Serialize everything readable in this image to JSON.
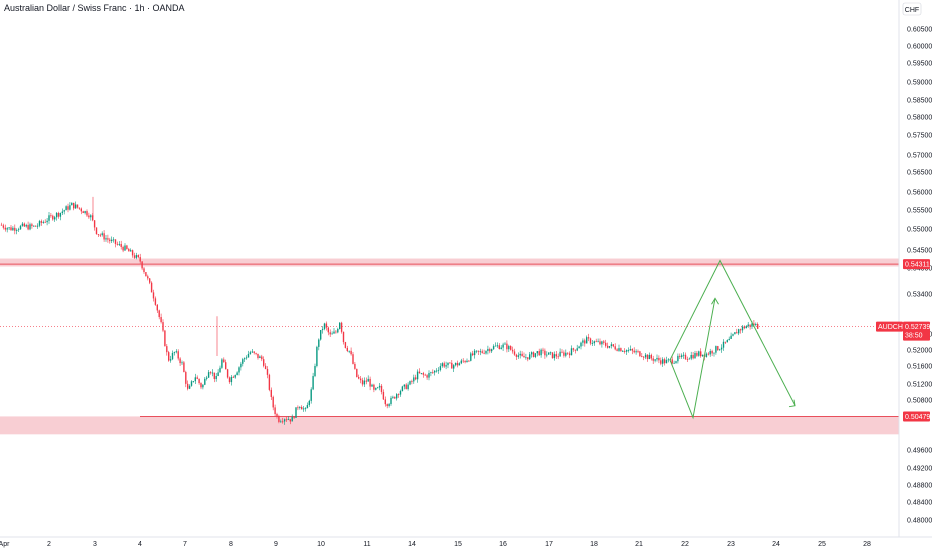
{
  "header": {
    "title": "Australian Dollar / Swiss Franc · 1h · OANDA"
  },
  "price_axis": {
    "currency_button": "CHF",
    "ticks": [
      "0.60500",
      "0.60000",
      "0.59500",
      "0.59000",
      "0.58500",
      "0.58000",
      "0.57500",
      "0.57000",
      "0.56500",
      "0.56000",
      "0.55500",
      "0.55000",
      "0.54500",
      "0.54000",
      "0.53400",
      "0.52400",
      "0.52000",
      "0.51600",
      "0.51200",
      "0.50800",
      "0.49600",
      "0.49200",
      "0.48800",
      "0.48400",
      "0.48000"
    ]
  },
  "time_axis": {
    "ticks": [
      "Apr",
      "2",
      "3",
      "4",
      "7",
      "8",
      "9",
      "10",
      "11",
      "14",
      "15",
      "16",
      "17",
      "18",
      "21",
      "22",
      "23",
      "24",
      "25",
      "28"
    ]
  },
  "price_tags": {
    "resistance": "0.54311",
    "current_symbol": "AUDCHF",
    "current_price": "0.52739",
    "countdown": "38:50",
    "support": "0.50479"
  },
  "colors": {
    "up": "#089981",
    "down": "#f23645",
    "zone_fill": "#f7c6cb",
    "zone_line": "#e8505c",
    "drawing": "#4caf50",
    "current_tag": "#f23645"
  },
  "chart_data": {
    "type": "candlestick",
    "symbol": "AUDCHF",
    "interval": "1h",
    "source": "OANDA",
    "ylim": [
      0.478,
      0.6075
    ],
    "resistance_zone": [
      0.5425,
      0.5445
    ],
    "support_zone": [
      0.5003,
      0.5048
    ],
    "current_price": 0.52739,
    "path": [
      [
        0,
        0.553
      ],
      [
        10,
        0.552
      ],
      [
        22,
        0.5525
      ],
      [
        35,
        0.5525
      ],
      [
        48,
        0.5545
      ],
      [
        60,
        0.556
      ],
      [
        72,
        0.558
      ],
      [
        80,
        0.557
      ],
      [
        90,
        0.5555
      ],
      [
        97,
        0.551
      ],
      [
        110,
        0.549
      ],
      [
        125,
        0.547
      ],
      [
        140,
        0.544
      ],
      [
        148,
        0.539
      ],
      [
        155,
        0.534
      ],
      [
        162,
        0.527
      ],
      [
        168,
        0.519
      ],
      [
        175,
        0.521
      ],
      [
        182,
        0.518
      ],
      [
        188,
        0.511
      ],
      [
        195,
        0.515
      ],
      [
        202,
        0.512
      ],
      [
        209,
        0.517
      ],
      [
        216,
        0.514
      ],
      [
        222,
        0.519
      ],
      [
        229,
        0.514
      ],
      [
        236,
        0.516
      ],
      [
        243,
        0.519
      ],
      [
        250,
        0.521
      ],
      [
        257,
        0.52
      ],
      [
        263,
        0.519
      ],
      [
        268,
        0.514
      ],
      [
        272,
        0.508
      ],
      [
        278,
        0.504
      ],
      [
        285,
        0.5045
      ],
      [
        292,
        0.504
      ],
      [
        299,
        0.508
      ],
      [
        306,
        0.506
      ],
      [
        312,
        0.512
      ],
      [
        318,
        0.524
      ],
      [
        324,
        0.528
      ],
      [
        330,
        0.525
      ],
      [
        336,
        0.526
      ],
      [
        340,
        0.529
      ],
      [
        344,
        0.523
      ],
      [
        350,
        0.521
      ],
      [
        356,
        0.515
      ],
      [
        362,
        0.513
      ],
      [
        368,
        0.514
      ],
      [
        374,
        0.511
      ],
      [
        380,
        0.512
      ],
      [
        386,
        0.508
      ],
      [
        392,
        0.509
      ],
      [
        398,
        0.511
      ],
      [
        404,
        0.512
      ],
      [
        410,
        0.513
      ],
      [
        418,
        0.5155
      ],
      [
        426,
        0.515
      ],
      [
        434,
        0.516
      ],
      [
        442,
        0.518
      ],
      [
        450,
        0.5175
      ],
      [
        458,
        0.518
      ],
      [
        466,
        0.519
      ],
      [
        474,
        0.5205
      ],
      [
        482,
        0.521
      ],
      [
        490,
        0.522
      ],
      [
        498,
        0.5225
      ],
      [
        506,
        0.5225
      ],
      [
        514,
        0.521
      ],
      [
        522,
        0.5195
      ],
      [
        530,
        0.52
      ],
      [
        538,
        0.521
      ],
      [
        546,
        0.5205
      ],
      [
        554,
        0.52
      ],
      [
        562,
        0.5205
      ],
      [
        570,
        0.521
      ],
      [
        578,
        0.5225
      ],
      [
        586,
        0.524
      ],
      [
        594,
        0.5235
      ],
      [
        602,
        0.523
      ],
      [
        610,
        0.5225
      ],
      [
        618,
        0.522
      ],
      [
        626,
        0.5215
      ],
      [
        634,
        0.521
      ],
      [
        642,
        0.5205
      ],
      [
        650,
        0.5195
      ],
      [
        658,
        0.519
      ],
      [
        666,
        0.5185
      ],
      [
        674,
        0.519
      ],
      [
        682,
        0.5195
      ],
      [
        690,
        0.52
      ],
      [
        698,
        0.5205
      ],
      [
        706,
        0.5205
      ],
      [
        714,
        0.5215
      ],
      [
        722,
        0.5225
      ],
      [
        730,
        0.524
      ],
      [
        738,
        0.5265
      ],
      [
        746,
        0.5275
      ],
      [
        754,
        0.528
      ],
      [
        758,
        0.52739
      ]
    ],
    "annotations": {
      "zigzag": [
        [
          670,
          0.519
        ],
        [
          693,
          0.5045
        ],
        [
          715,
          0.5345
        ]
      ],
      "projection": [
        [
          670,
          0.519
        ],
        [
          720,
          0.544
        ],
        [
          795,
          0.5075
        ]
      ]
    }
  }
}
